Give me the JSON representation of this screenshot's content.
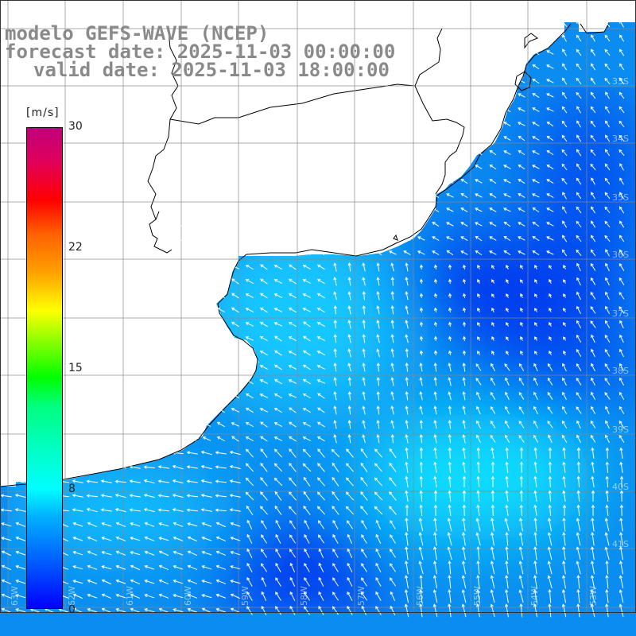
{
  "title": {
    "line1": "modelo GEFS-WAVE (NCEP)",
    "line2": "forecast date: 2025-11-03 00:00:00",
    "line3": "valid date: 2025-11-03 18:00:00"
  },
  "colorbar": {
    "unit": "[m/s]",
    "ticks": [
      {
        "label": "30",
        "value": 30
      },
      {
        "label": "22",
        "value": 22
      },
      {
        "label": "15",
        "value": 15
      },
      {
        "label": "8",
        "value": 8
      },
      {
        "label": "0",
        "value": 0
      }
    ]
  },
  "lat_labels": [
    "33S",
    "34S",
    "35S",
    "36S",
    "37S",
    "38S",
    "39S",
    "40S",
    "41S"
  ],
  "lon_labels": [
    "63W",
    "62W",
    "61W",
    "60W",
    "59W",
    "58W",
    "57W",
    "56W",
    "55W",
    "54W",
    "53W"
  ],
  "colors": {
    "ocean_dark": "#0033ee",
    "ocean_mid": "#0a8cf0",
    "ocean_light": "#12d2ff",
    "land": "#ffffff",
    "coast": "#000000",
    "grid": "#888888",
    "vectors": "#ffffff"
  }
}
